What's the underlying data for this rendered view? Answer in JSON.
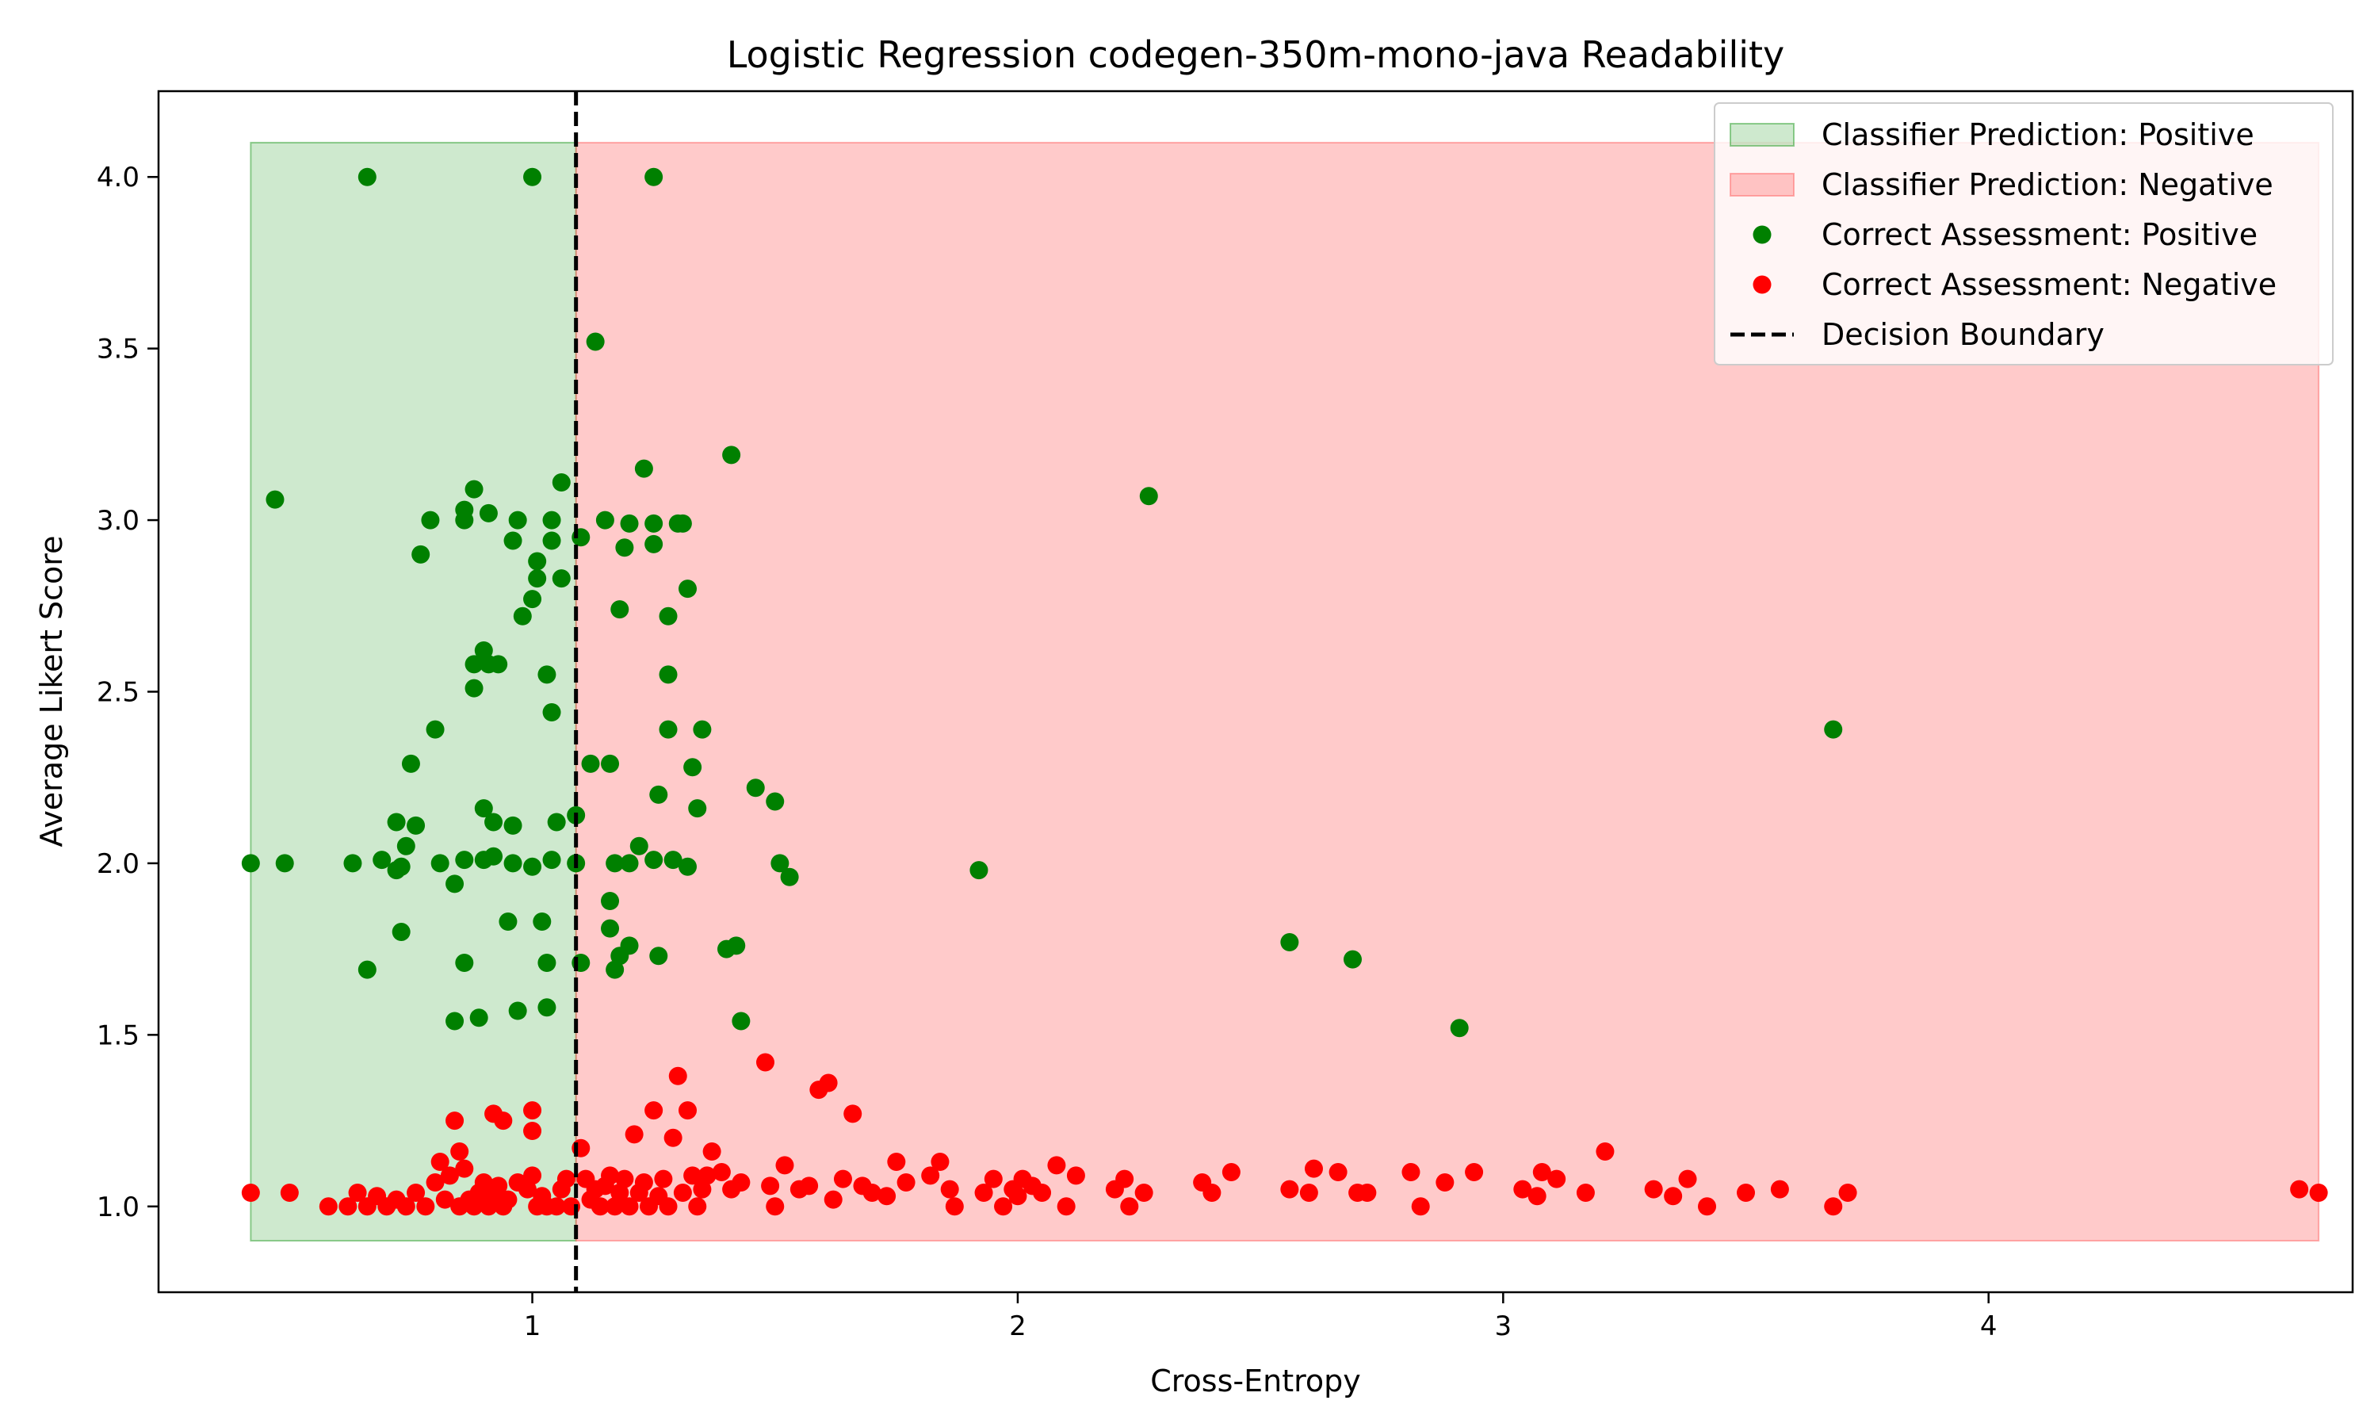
{
  "chart_data": {
    "type": "scatter",
    "title": "Logistic Regression codegen-350m-mono-java Readability",
    "xlabel": "Cross-Entropy",
    "ylabel": "Average Likert Score",
    "xlim": [
      0.23,
      4.75
    ],
    "ylim": [
      0.75,
      4.25
    ],
    "x_ticks": [
      1,
      2,
      3,
      4
    ],
    "x_tick_labels": [
      "1",
      "2",
      "3",
      "4"
    ],
    "y_ticks": [
      1.0,
      1.5,
      2.0,
      2.5,
      3.0,
      3.5,
      4.0
    ],
    "y_tick_labels": [
      "1.0",
      "1.5",
      "2.0",
      "2.5",
      "3.0",
      "3.5",
      "4.0"
    ],
    "grid": false,
    "legend_position": "upper right",
    "decision_boundary": 1.09,
    "regions": [
      {
        "name": "Classifier Prediction: Positive",
        "color": "#2ca02c",
        "x": [
          0.42,
          1.09
        ],
        "y": [
          0.9,
          4.1
        ]
      },
      {
        "name": "Classifier Prediction: Negative",
        "color": "#ff6666",
        "x": [
          1.09,
          4.68
        ],
        "y": [
          0.9,
          4.1
        ]
      }
    ],
    "series": [
      {
        "name": "Correct Assessment: Positive",
        "color": "#008000",
        "points": [
          [
            0.66,
            4.0
          ],
          [
            1.0,
            4.0
          ],
          [
            1.25,
            4.0
          ],
          [
            1.13,
            3.52
          ],
          [
            0.47,
            3.06
          ],
          [
            1.41,
            3.19
          ],
          [
            1.23,
            3.15
          ],
          [
            2.27,
            3.07
          ],
          [
            1.06,
            3.11
          ],
          [
            0.88,
            3.09
          ],
          [
            0.86,
            3.03
          ],
          [
            0.91,
            3.02
          ],
          [
            0.79,
            3.0
          ],
          [
            0.86,
            3.0
          ],
          [
            0.97,
            3.0
          ],
          [
            1.04,
            3.0
          ],
          [
            1.15,
            3.0
          ],
          [
            1.2,
            2.99
          ],
          [
            1.25,
            2.99
          ],
          [
            1.3,
            2.99
          ],
          [
            1.31,
            2.99
          ],
          [
            0.96,
            2.94
          ],
          [
            1.04,
            2.94
          ],
          [
            1.1,
            2.95
          ],
          [
            1.19,
            2.92
          ],
          [
            1.25,
            2.93
          ],
          [
            0.77,
            2.9
          ],
          [
            1.01,
            2.88
          ],
          [
            1.01,
            2.83
          ],
          [
            1.06,
            2.83
          ],
          [
            1.32,
            2.8
          ],
          [
            1.0,
            2.77
          ],
          [
            1.18,
            2.74
          ],
          [
            1.28,
            2.72
          ],
          [
            0.98,
            2.72
          ],
          [
            0.9,
            2.62
          ],
          [
            0.88,
            2.58
          ],
          [
            0.91,
            2.58
          ],
          [
            0.93,
            2.58
          ],
          [
            1.03,
            2.55
          ],
          [
            1.28,
            2.55
          ],
          [
            0.88,
            2.51
          ],
          [
            1.04,
            2.44
          ],
          [
            0.8,
            2.39
          ],
          [
            1.28,
            2.39
          ],
          [
            1.35,
            2.39
          ],
          [
            3.68,
            2.39
          ],
          [
            0.75,
            2.29
          ],
          [
            1.12,
            2.29
          ],
          [
            1.16,
            2.29
          ],
          [
            1.33,
            2.28
          ],
          [
            1.46,
            2.22
          ],
          [
            1.26,
            2.2
          ],
          [
            1.5,
            2.18
          ],
          [
            0.9,
            2.16
          ],
          [
            1.34,
            2.16
          ],
          [
            1.09,
            2.14
          ],
          [
            0.72,
            2.12
          ],
          [
            0.76,
            2.11
          ],
          [
            0.92,
            2.12
          ],
          [
            0.96,
            2.11
          ],
          [
            1.05,
            2.12
          ],
          [
            0.74,
            2.05
          ],
          [
            1.22,
            2.05
          ],
          [
            0.69,
            2.01
          ],
          [
            0.73,
            1.99
          ],
          [
            0.81,
            2.0
          ],
          [
            0.86,
            2.01
          ],
          [
            0.9,
            2.01
          ],
          [
            0.92,
            2.02
          ],
          [
            0.96,
            2.0
          ],
          [
            1.0,
            1.99
          ],
          [
            1.04,
            2.01
          ],
          [
            1.09,
            2.0
          ],
          [
            1.17,
            2.0
          ],
          [
            1.2,
            2.0
          ],
          [
            1.25,
            2.01
          ],
          [
            1.29,
            2.01
          ],
          [
            1.32,
            1.99
          ],
          [
            1.51,
            2.0
          ],
          [
            1.53,
            1.96
          ],
          [
            1.92,
            1.98
          ],
          [
            0.42,
            2.0
          ],
          [
            0.49,
            2.0
          ],
          [
            0.63,
            2.0
          ],
          [
            0.72,
            1.98
          ],
          [
            0.84,
            1.94
          ],
          [
            1.16,
            1.89
          ],
          [
            1.16,
            1.81
          ],
          [
            0.95,
            1.83
          ],
          [
            1.02,
            1.83
          ],
          [
            0.73,
            1.8
          ],
          [
            2.56,
            1.77
          ],
          [
            1.4,
            1.75
          ],
          [
            1.42,
            1.76
          ],
          [
            1.2,
            1.76
          ],
          [
            1.18,
            1.73
          ],
          [
            2.69,
            1.72
          ],
          [
            1.26,
            1.73
          ],
          [
            0.86,
            1.71
          ],
          [
            1.03,
            1.71
          ],
          [
            1.1,
            1.71
          ],
          [
            0.66,
            1.69
          ],
          [
            1.17,
            1.69
          ],
          [
            1.03,
            1.58
          ],
          [
            0.97,
            1.57
          ],
          [
            0.84,
            1.54
          ],
          [
            0.89,
            1.55
          ],
          [
            1.43,
            1.54
          ],
          [
            2.91,
            1.52
          ]
        ]
      },
      {
        "name": "Correct Assessment: Negative",
        "color": "#ff0000",
        "points": [
          [
            0.42,
            1.04
          ],
          [
            0.5,
            1.04
          ],
          [
            0.58,
            1.0
          ],
          [
            0.62,
            1.0
          ],
          [
            0.64,
            1.04
          ],
          [
            0.66,
            1.0
          ],
          [
            0.68,
            1.03
          ],
          [
            0.7,
            1.0
          ],
          [
            0.72,
            1.02
          ],
          [
            0.74,
            1.0
          ],
          [
            0.76,
            1.04
          ],
          [
            0.78,
            1.0
          ],
          [
            0.8,
            1.07
          ],
          [
            0.82,
            1.02
          ],
          [
            0.83,
            1.09
          ],
          [
            0.85,
            1.0
          ],
          [
            0.86,
            1.11
          ],
          [
            0.87,
            1.02
          ],
          [
            0.88,
            1.0
          ],
          [
            0.89,
            1.04
          ],
          [
            0.9,
            1.07
          ],
          [
            0.91,
            1.0
          ],
          [
            0.92,
            1.04
          ],
          [
            0.93,
            1.06
          ],
          [
            0.94,
            1.0
          ],
          [
            0.95,
            1.02
          ],
          [
            0.97,
            1.07
          ],
          [
            0.99,
            1.05
          ],
          [
            1.0,
            1.09
          ],
          [
            1.01,
            1.0
          ],
          [
            1.02,
            1.03
          ],
          [
            1.03,
            1.0
          ],
          [
            1.05,
            1.0
          ],
          [
            1.06,
            1.05
          ],
          [
            1.07,
            1.08
          ],
          [
            1.08,
            1.0
          ],
          [
            0.84,
            1.25
          ],
          [
            0.85,
            1.16
          ],
          [
            0.81,
            1.13
          ],
          [
            0.92,
            1.27
          ],
          [
            0.94,
            1.25
          ],
          [
            1.0,
            1.28
          ],
          [
            1.0,
            1.22
          ],
          [
            1.1,
            1.17
          ],
          [
            1.11,
            1.08
          ],
          [
            1.12,
            1.02
          ],
          [
            1.13,
            1.05
          ],
          [
            1.14,
            1.0
          ],
          [
            1.15,
            1.06
          ],
          [
            1.16,
            1.09
          ],
          [
            1.17,
            1.0
          ],
          [
            1.18,
            1.04
          ],
          [
            1.19,
            1.08
          ],
          [
            1.2,
            1.0
          ],
          [
            1.21,
            1.21
          ],
          [
            1.22,
            1.04
          ],
          [
            1.23,
            1.07
          ],
          [
            1.24,
            1.0
          ],
          [
            1.25,
            1.28
          ],
          [
            1.26,
            1.03
          ],
          [
            1.27,
            1.08
          ],
          [
            1.28,
            1.0
          ],
          [
            1.29,
            1.2
          ],
          [
            1.3,
            1.38
          ],
          [
            1.31,
            1.04
          ],
          [
            1.32,
            1.28
          ],
          [
            1.33,
            1.09
          ],
          [
            1.34,
            1.0
          ],
          [
            1.35,
            1.05
          ],
          [
            1.36,
            1.09
          ],
          [
            1.37,
            1.16
          ],
          [
            1.39,
            1.1
          ],
          [
            1.41,
            1.05
          ],
          [
            1.43,
            1.07
          ],
          [
            1.48,
            1.42
          ],
          [
            1.49,
            1.06
          ],
          [
            1.5,
            1.0
          ],
          [
            1.52,
            1.12
          ],
          [
            1.55,
            1.05
          ],
          [
            1.57,
            1.06
          ],
          [
            1.59,
            1.34
          ],
          [
            1.61,
            1.36
          ],
          [
            1.62,
            1.02
          ],
          [
            1.64,
            1.08
          ],
          [
            1.66,
            1.27
          ],
          [
            1.68,
            1.06
          ],
          [
            1.7,
            1.04
          ],
          [
            1.73,
            1.03
          ],
          [
            1.75,
            1.13
          ],
          [
            1.77,
            1.07
          ],
          [
            1.82,
            1.09
          ],
          [
            1.84,
            1.13
          ],
          [
            1.86,
            1.05
          ],
          [
            1.87,
            1.0
          ],
          [
            1.93,
            1.04
          ],
          [
            1.95,
            1.08
          ],
          [
            1.97,
            1.0
          ],
          [
            1.99,
            1.05
          ],
          [
            2.0,
            1.03
          ],
          [
            2.01,
            1.08
          ],
          [
            2.03,
            1.06
          ],
          [
            2.05,
            1.04
          ],
          [
            2.08,
            1.12
          ],
          [
            2.1,
            1.0
          ],
          [
            2.12,
            1.09
          ],
          [
            2.2,
            1.05
          ],
          [
            2.22,
            1.08
          ],
          [
            2.23,
            1.0
          ],
          [
            2.26,
            1.04
          ],
          [
            2.38,
            1.07
          ],
          [
            2.4,
            1.04
          ],
          [
            2.44,
            1.1
          ],
          [
            2.56,
            1.05
          ],
          [
            2.6,
            1.04
          ],
          [
            2.61,
            1.11
          ],
          [
            2.66,
            1.1
          ],
          [
            2.7,
            1.04
          ],
          [
            2.72,
            1.04
          ],
          [
            2.81,
            1.1
          ],
          [
            2.83,
            1.0
          ],
          [
            2.88,
            1.07
          ],
          [
            2.94,
            1.1
          ],
          [
            3.04,
            1.05
          ],
          [
            3.07,
            1.03
          ],
          [
            3.08,
            1.1
          ],
          [
            3.11,
            1.08
          ],
          [
            3.17,
            1.04
          ],
          [
            3.21,
            1.16
          ],
          [
            3.31,
            1.05
          ],
          [
            3.35,
            1.03
          ],
          [
            3.38,
            1.08
          ],
          [
            3.42,
            1.0
          ],
          [
            3.5,
            1.04
          ],
          [
            3.57,
            1.05
          ],
          [
            3.68,
            1.0
          ],
          [
            3.71,
            1.04
          ],
          [
            4.64,
            1.05
          ],
          [
            4.68,
            1.04
          ]
        ]
      }
    ],
    "legend": [
      {
        "label": "Classifier Prediction: Positive",
        "kind": "patch",
        "color": "#2ca02c"
      },
      {
        "label": "Classifier Prediction: Negative",
        "kind": "patch",
        "color": "#ff6666"
      },
      {
        "label": "Correct Assessment: Positive",
        "kind": "marker",
        "color": "#008000"
      },
      {
        "label": "Correct Assessment: Negative",
        "kind": "marker",
        "color": "#ff0000"
      },
      {
        "label": "Decision Boundary",
        "kind": "dashed-line",
        "color": "#000000"
      }
    ]
  }
}
